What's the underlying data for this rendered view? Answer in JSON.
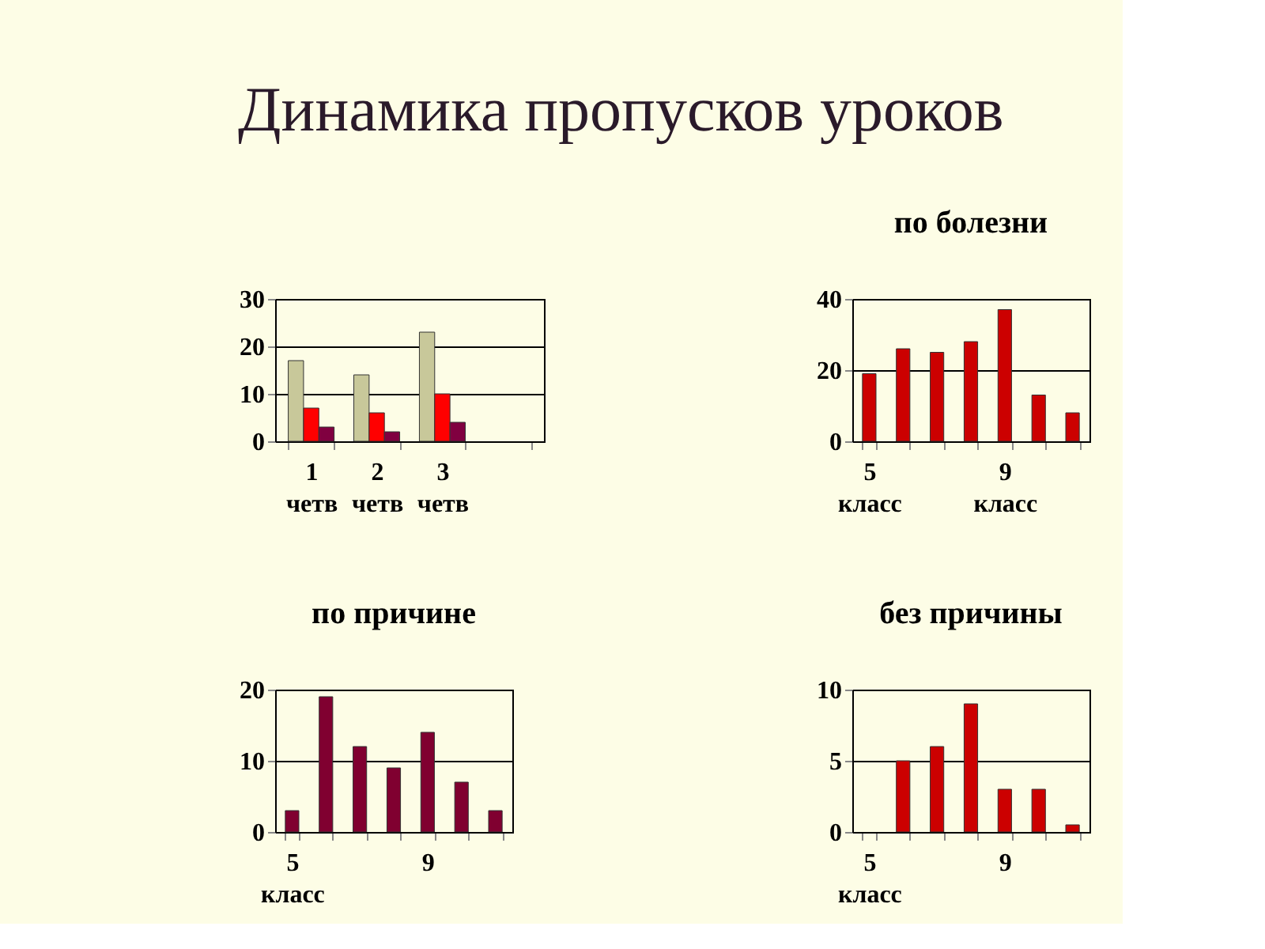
{
  "chart_data": [
    {
      "type": "bar",
      "title": "Динамика пропусков уроков",
      "categories": [
        "1\nчетв",
        "2\nчетв",
        "3\nчетв",
        null
      ],
      "series": [
        {
          "color": "#c8c89a",
          "values": [
            17,
            14,
            23,
            null
          ]
        },
        {
          "color": "#ff0000",
          "values": [
            7,
            6,
            10,
            null
          ]
        },
        {
          "color": "#800040",
          "values": [
            3,
            2,
            4,
            null
          ]
        }
      ],
      "ylim": [
        0,
        30
      ],
      "yticks": [
        0,
        10,
        20,
        30
      ],
      "grid": "y",
      "legend": false
    },
    {
      "type": "bar",
      "title": "по болезни",
      "categories": [
        "5\nкласс",
        null,
        null,
        null,
        "9\nкласс",
        null,
        null
      ],
      "series": [
        {
          "color": "#cc0000",
          "values": [
            19,
            26,
            25,
            28,
            37,
            13,
            8
          ]
        }
      ],
      "ylim": [
        0,
        40
      ],
      "yticks": [
        0,
        20,
        40
      ],
      "grid": "y",
      "legend": false
    },
    {
      "type": "bar",
      "title": "по причине",
      "categories": [
        "5\nкласс",
        null,
        null,
        null,
        "9",
        null,
        null
      ],
      "series": [
        {
          "color": "#800030",
          "values": [
            3,
            19,
            12,
            9,
            14,
            7,
            3
          ]
        }
      ],
      "ylim": [
        0,
        20
      ],
      "yticks": [
        0,
        10,
        20
      ],
      "grid": "y",
      "legend": false
    },
    {
      "type": "bar",
      "title": "без причины",
      "categories": [
        "5\nкласс",
        null,
        null,
        null,
        "9",
        null,
        null
      ],
      "series": [
        {
          "color": "#cc0000",
          "values": [
            null,
            5,
            6,
            9,
            3,
            3,
            0.5
          ]
        }
      ],
      "ylim": [
        0,
        10
      ],
      "yticks": [
        0,
        5,
        10
      ],
      "grid": "y",
      "legend": false
    }
  ]
}
